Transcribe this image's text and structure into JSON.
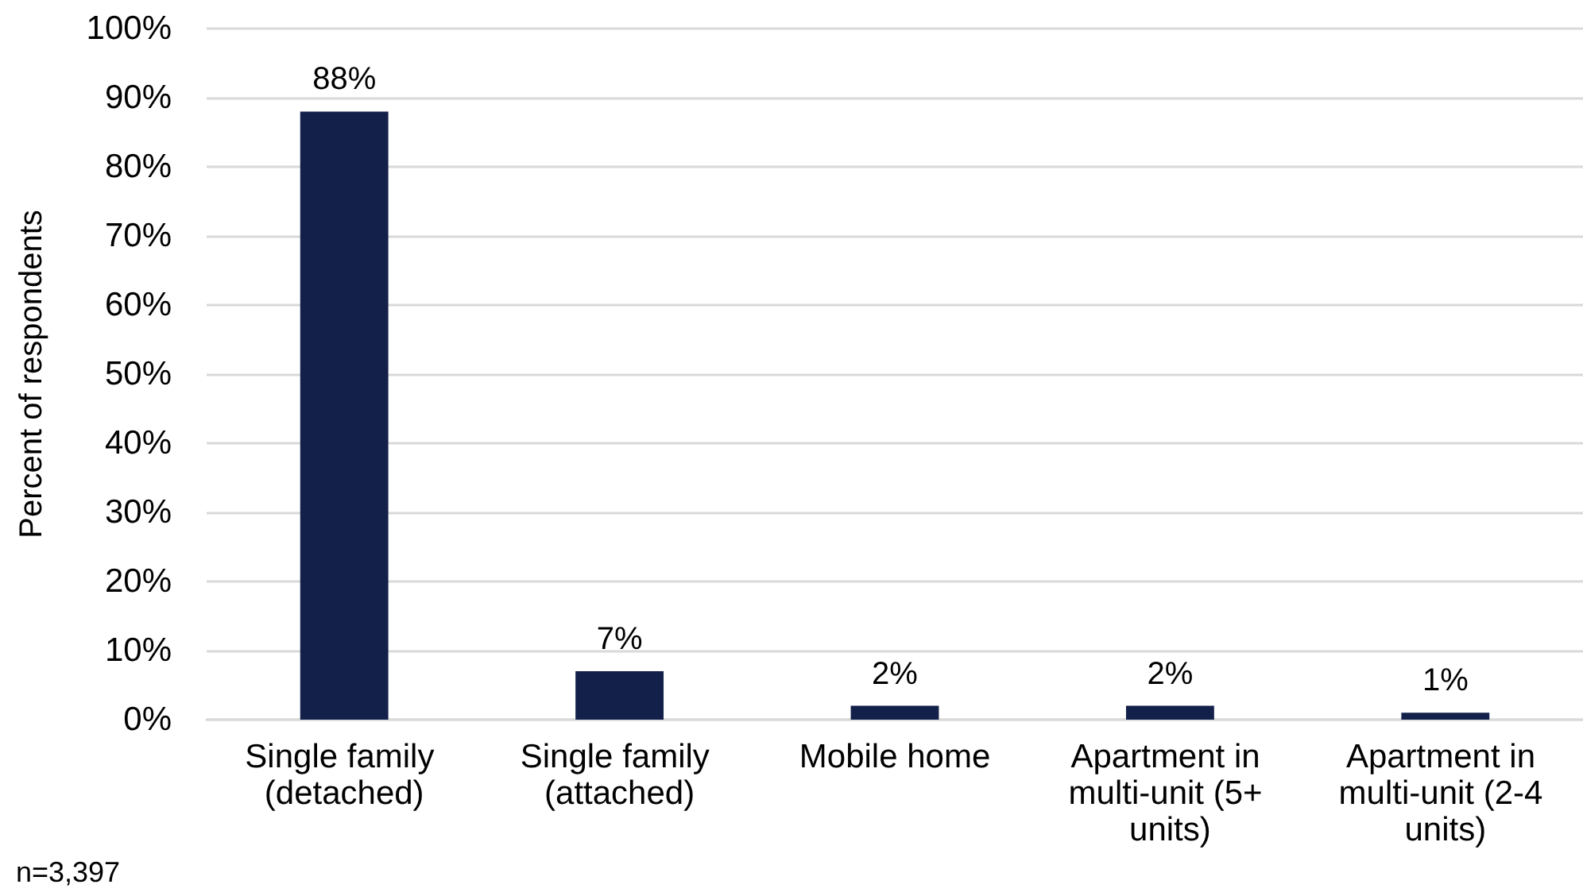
{
  "chart_data": {
    "type": "bar",
    "ylabel": "Percent of respondents",
    "categories": [
      "Single family (detached)",
      "Single family (attached)",
      "Mobile home",
      "Apartment in multi-unit (5+ units)",
      "Apartment in multi-unit (2-4 units)"
    ],
    "values": [
      88,
      7,
      2,
      2,
      1
    ],
    "value_labels": [
      "88%",
      "7%",
      "2%",
      "2%",
      "1%"
    ],
    "color": "#13214a",
    "ylim": [
      0,
      100
    ],
    "yticks": [
      {
        "value": 0,
        "label": "0%"
      },
      {
        "value": 10,
        "label": "10%"
      },
      {
        "value": 20,
        "label": "20%"
      },
      {
        "value": 30,
        "label": "30%"
      },
      {
        "value": 40,
        "label": "40%"
      },
      {
        "value": 50,
        "label": "50%"
      },
      {
        "value": 60,
        "label": "60%"
      },
      {
        "value": 70,
        "label": "70%"
      },
      {
        "value": 80,
        "label": "80%"
      },
      {
        "value": 90,
        "label": "90%"
      },
      {
        "value": 100,
        "label": "100%"
      }
    ],
    "grid": "y",
    "annotations": [
      "n=3,397"
    ]
  }
}
